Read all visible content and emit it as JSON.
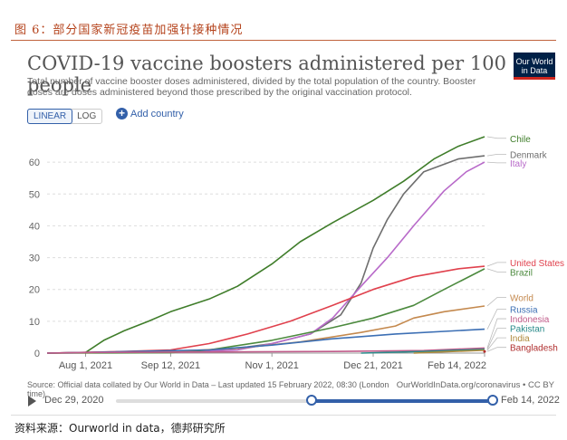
{
  "figure_caption": "图 6：部分国家新冠疫苗加强针接种情况",
  "footer_source": "资料来源：Ourworld in data，德邦研究所",
  "logo_text": "Our World in Data",
  "controls": {
    "linear_label": "LINEAR",
    "log_label": "LOG",
    "add_country_label": "Add country",
    "plus_symbol": "+"
  },
  "source_note": "Source: Official data collated by Our World in Data – Last updated 15 February 2022, 08:30 (London time)",
  "url_note": "OurWorldInData.org/coronavirus • CC BY",
  "timeline": {
    "start_date": "Dec 29, 2020",
    "end_date": "Feb 14, 2022",
    "selected_start_fraction": 0.52,
    "selected_end_fraction": 1.0
  },
  "chart_data": {
    "type": "line",
    "title": "COVID-19 vaccine boosters administered per 100 people",
    "subtitle": "Total number of vaccine booster doses administered, divided by the total population of the country. Booster doses are doses administered beyond those prescribed by the original vaccination protocol.",
    "scale": "linear",
    "ylim": [
      0,
      70
    ],
    "yticks": [
      0,
      10,
      20,
      30,
      40,
      50,
      60
    ],
    "xlim": [
      "2021-07-13",
      "2022-02-14"
    ],
    "xticks": [
      {
        "date": "2021-08-01",
        "label": "Aug 1, 2021"
      },
      {
        "date": "2021-09-12",
        "label": "Sep 12, 2021"
      },
      {
        "date": "2021-11-01",
        "label": "Nov 1, 2021"
      },
      {
        "date": "2021-12-21",
        "label": "Dec 21, 2021"
      },
      {
        "date": "2022-02-14",
        "label": "Feb 14, 2022"
      }
    ],
    "grid": "horizontal dashed",
    "legend": "right, labels at line ends",
    "series": [
      {
        "name": "Chile",
        "color": "#3f7d2a",
        "points": [
          [
            "2021-07-13",
            0
          ],
          [
            "2021-08-01",
            0.2
          ],
          [
            "2021-08-10",
            4
          ],
          [
            "2021-08-20",
            7
          ],
          [
            "2021-09-01",
            10
          ],
          [
            "2021-09-12",
            13
          ],
          [
            "2021-10-01",
            17
          ],
          [
            "2021-10-15",
            21
          ],
          [
            "2021-11-01",
            28
          ],
          [
            "2021-11-15",
            35
          ],
          [
            "2021-12-01",
            41
          ],
          [
            "2021-12-21",
            48
          ],
          [
            "2022-01-05",
            54
          ],
          [
            "2022-01-20",
            61
          ],
          [
            "2022-02-01",
            65
          ],
          [
            "2022-02-14",
            68
          ]
        ]
      },
      {
        "name": "Denmark",
        "color": "#6e6e6e",
        "points": [
          [
            "2021-07-13",
            0
          ],
          [
            "2021-09-12",
            0.3
          ],
          [
            "2021-10-15",
            1.5
          ],
          [
            "2021-11-01",
            3
          ],
          [
            "2021-11-20",
            6
          ],
          [
            "2021-12-05",
            12
          ],
          [
            "2021-12-15",
            22
          ],
          [
            "2021-12-21",
            33
          ],
          [
            "2021-12-28",
            42
          ],
          [
            "2022-01-05",
            50
          ],
          [
            "2022-01-15",
            57
          ],
          [
            "2022-02-01",
            61
          ],
          [
            "2022-02-14",
            62
          ]
        ]
      },
      {
        "name": "Italy",
        "color": "#b86ac9",
        "points": [
          [
            "2021-07-13",
            0
          ],
          [
            "2021-09-12",
            0.2
          ],
          [
            "2021-10-15",
            1
          ],
          [
            "2021-11-01",
            3
          ],
          [
            "2021-11-20",
            6
          ],
          [
            "2021-12-01",
            11
          ],
          [
            "2021-12-15",
            21
          ],
          [
            "2021-12-28",
            30
          ],
          [
            "2022-01-10",
            40
          ],
          [
            "2022-01-25",
            51
          ],
          [
            "2022-02-05",
            57
          ],
          [
            "2022-02-14",
            60
          ]
        ]
      },
      {
        "name": "United States",
        "color": "#e0414d",
        "points": [
          [
            "2021-07-13",
            0
          ],
          [
            "2021-08-20",
            0.5
          ],
          [
            "2021-09-12",
            1
          ],
          [
            "2021-10-01",
            3
          ],
          [
            "2021-10-20",
            6
          ],
          [
            "2021-11-10",
            10
          ],
          [
            "2021-12-01",
            15
          ],
          [
            "2021-12-21",
            20
          ],
          [
            "2022-01-10",
            24
          ],
          [
            "2022-02-01",
            26.5
          ],
          [
            "2022-02-14",
            27.3
          ]
        ]
      },
      {
        "name": "Brazil",
        "color": "#4c8a3e",
        "points": [
          [
            "2021-07-13",
            0
          ],
          [
            "2021-09-12",
            0.1
          ],
          [
            "2021-10-01",
            1
          ],
          [
            "2021-11-01",
            4
          ],
          [
            "2021-12-01",
            8
          ],
          [
            "2021-12-21",
            11
          ],
          [
            "2022-01-10",
            15
          ],
          [
            "2022-01-25",
            20
          ],
          [
            "2022-02-14",
            26.5
          ]
        ]
      },
      {
        "name": "World",
        "color": "#c4894e",
        "points": [
          [
            "2021-07-13",
            0
          ],
          [
            "2021-09-12",
            0.5
          ],
          [
            "2021-10-15",
            1.5
          ],
          [
            "2021-11-15",
            3.5
          ],
          [
            "2021-12-15",
            6.5
          ],
          [
            "2022-01-01",
            8.5
          ],
          [
            "2022-01-10",
            11
          ],
          [
            "2022-01-25",
            13
          ],
          [
            "2022-02-14",
            14.8
          ]
        ]
      },
      {
        "name": "Russia",
        "color": "#3c6fb4",
        "points": [
          [
            "2021-07-13",
            0
          ],
          [
            "2021-10-01",
            1
          ],
          [
            "2021-11-01",
            2.5
          ],
          [
            "2021-12-01",
            4.5
          ],
          [
            "2022-01-01",
            6
          ],
          [
            "2022-02-14",
            7.5
          ]
        ]
      },
      {
        "name": "Indonesia",
        "color": "#c05c8a",
        "points": [
          [
            "2021-07-13",
            0
          ],
          [
            "2021-08-01",
            0.2
          ],
          [
            "2021-12-01",
            0.5
          ],
          [
            "2022-01-15",
            0.8
          ],
          [
            "2022-02-14",
            1.6
          ]
        ]
      },
      {
        "name": "Pakistan",
        "color": "#2a8a8a",
        "points": [
          [
            "2021-12-15",
            0
          ],
          [
            "2022-01-15",
            0.5
          ],
          [
            "2022-02-14",
            1.2
          ]
        ]
      },
      {
        "name": "India",
        "color": "#b08a3c",
        "points": [
          [
            "2022-01-10",
            0
          ],
          [
            "2022-01-25",
            0.4
          ],
          [
            "2022-02-14",
            0.9
          ]
        ]
      },
      {
        "name": "Bangladesh",
        "color": "#b03030",
        "points": [
          [
            "2022-02-14",
            0.5
          ]
        ]
      }
    ]
  }
}
